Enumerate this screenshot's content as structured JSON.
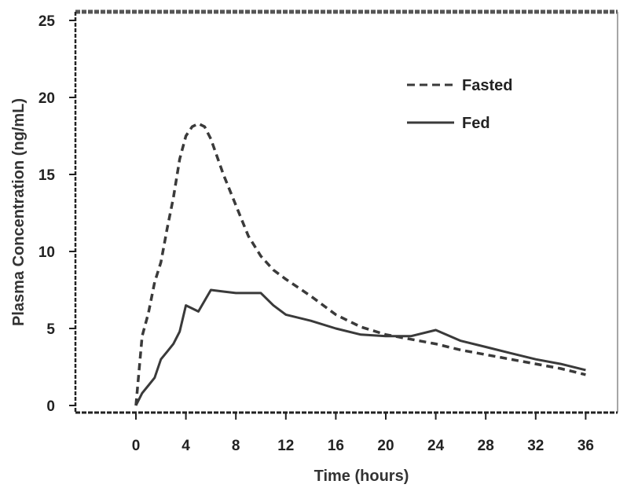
{
  "chart_data": {
    "type": "line",
    "title": "",
    "xlabel": "Time (hours)",
    "ylabel": "Plasma Concentration (ng/mL)",
    "xlim": [
      0,
      36
    ],
    "ylim": [
      0,
      25
    ],
    "xticks": [
      0,
      4,
      8,
      12,
      16,
      20,
      24,
      28,
      32,
      36
    ],
    "yticks": [
      0,
      5,
      10,
      15,
      20,
      25
    ],
    "grid": false,
    "legend_position": "top-right",
    "series": [
      {
        "name": "Fasted",
        "style": "dashed",
        "color": "#3a3a3a",
        "x": [
          0,
          0.5,
          1,
          1.5,
          2,
          2.5,
          3,
          3.5,
          4,
          4.5,
          5,
          5.5,
          6,
          7,
          8,
          9,
          10,
          11,
          12,
          14,
          16,
          18,
          20,
          22,
          24,
          26,
          28,
          30,
          32,
          34,
          36
        ],
        "y": [
          0,
          4.5,
          6,
          8,
          9.3,
          11.5,
          13.5,
          16,
          17.5,
          18.1,
          18.3,
          18.1,
          17.3,
          15,
          13,
          11,
          9.7,
          8.8,
          8.2,
          7.1,
          5.9,
          5.1,
          4.6,
          4.3,
          4.0,
          3.6,
          3.3,
          3.0,
          2.7,
          2.4,
          2.0
        ]
      },
      {
        "name": "Fed",
        "style": "solid",
        "color": "#3a3a3a",
        "x": [
          0,
          0.5,
          1,
          1.5,
          2,
          2.5,
          3,
          3.5,
          4,
          4.5,
          5,
          5.5,
          6,
          7,
          8,
          9,
          10,
          11,
          12,
          14,
          16,
          18,
          20,
          22,
          24,
          26,
          28,
          30,
          32,
          34,
          36
        ],
        "y": [
          0,
          0.8,
          1.3,
          1.8,
          3.0,
          3.5,
          4.0,
          4.8,
          6.5,
          6.3,
          6.1,
          6.8,
          7.5,
          7.4,
          7.3,
          7.3,
          7.3,
          6.5,
          5.9,
          5.5,
          5.0,
          4.6,
          4.5,
          4.5,
          4.9,
          4.2,
          3.8,
          3.4,
          3.0,
          2.7,
          2.3
        ]
      }
    ]
  }
}
